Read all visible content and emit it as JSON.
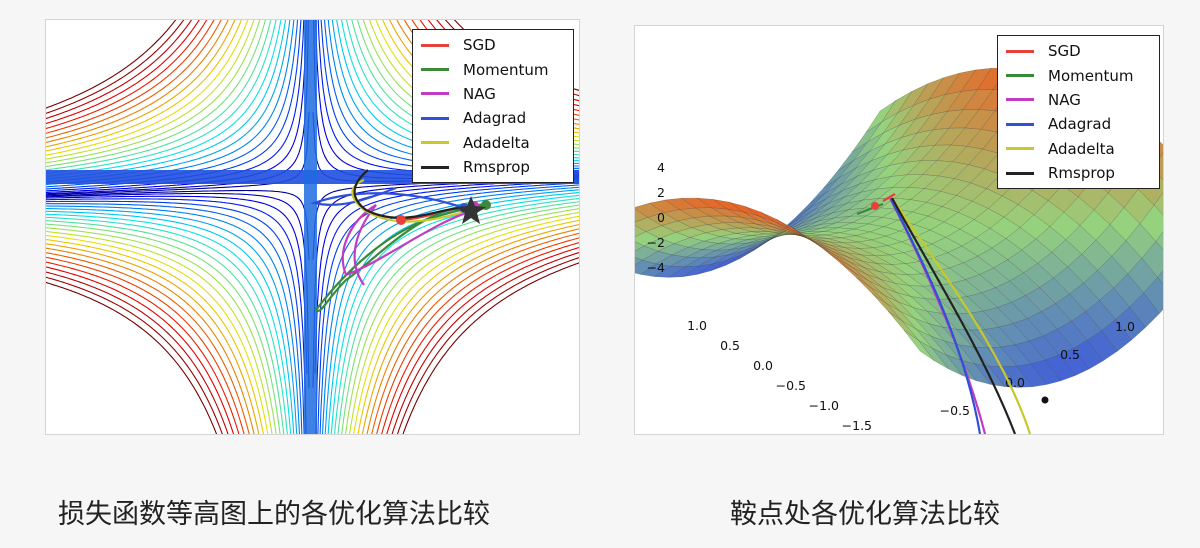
{
  "colors": {
    "SGD": "#e8413a",
    "Momentum": "#3a8a3a",
    "NAG": "#c23bc4",
    "Adagrad": "#3050d8",
    "Adadelta": "#c8c82a",
    "Rmsprop": "#222222"
  },
  "chart_data": [
    {
      "type": "line",
      "chart_kind": "contour plot with optimizer trajectories",
      "title": "",
      "caption": "损失函数等高图上的各优化算法比较",
      "legend_position": "top-right",
      "series": [
        {
          "name": "SGD"
        },
        {
          "name": "Momentum"
        },
        {
          "name": "NAG"
        },
        {
          "name": "Adagrad"
        },
        {
          "name": "Adadelta"
        },
        {
          "name": "Rmsprop"
        }
      ],
      "grid": false
    },
    {
      "type": "area",
      "chart_kind": "3D saddle surface with optimizer trajectories",
      "title": "",
      "caption": "鞍点处各优化算法比较",
      "legend_position": "top-right",
      "series": [
        {
          "name": "SGD"
        },
        {
          "name": "Momentum"
        },
        {
          "name": "NAG"
        },
        {
          "name": "Adagrad"
        },
        {
          "name": "Adadelta"
        },
        {
          "name": "Rmsprop"
        }
      ],
      "z_ticks": [
        "4",
        "2",
        "0",
        "−2",
        "−4"
      ],
      "x_ticks": [
        "1.0",
        "0.5",
        "0.0",
        "−0.5",
        "−1.0",
        "−1.5"
      ],
      "y_ticks": [
        "1.0",
        "0.5",
        "0.0",
        "−0.5"
      ],
      "grid": true
    }
  ]
}
